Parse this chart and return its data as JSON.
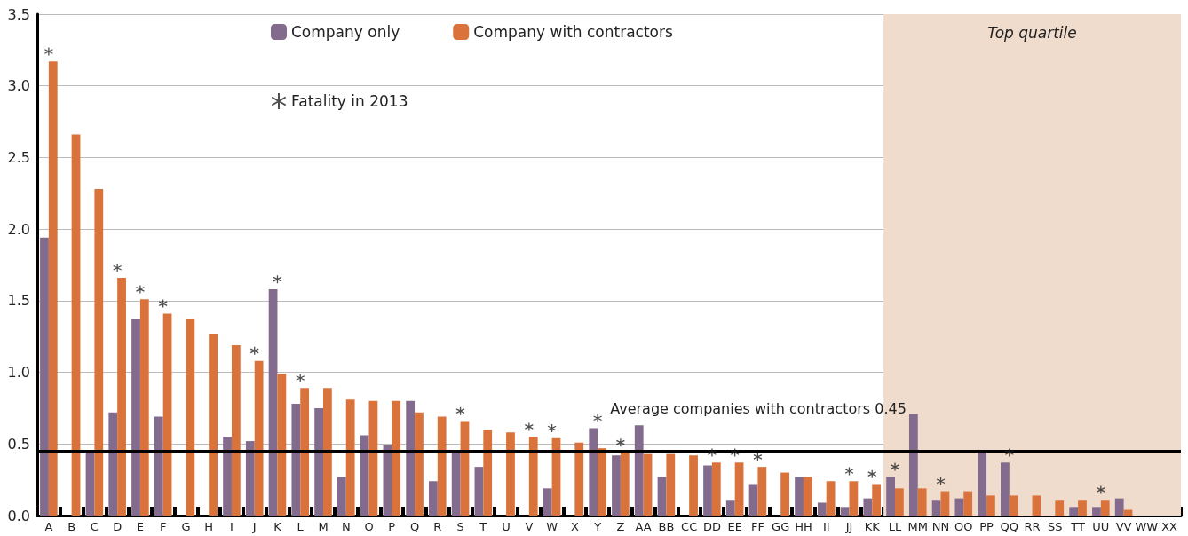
{
  "chart_data": {
    "type": "bar",
    "categories": [
      "A",
      "B",
      "C",
      "D",
      "E",
      "F",
      "G",
      "H",
      "I",
      "J",
      "K",
      "L",
      "M",
      "N",
      "O",
      "P",
      "Q",
      "R",
      "S",
      "T",
      "U",
      "V",
      "W",
      "X",
      "Y",
      "Z",
      "AA",
      "BB",
      "CC",
      "DD",
      "EE",
      "FF",
      "GG",
      "HH",
      "II",
      "JJ",
      "KK",
      "LL",
      "MM",
      "NN",
      "OO",
      "PP",
      "QQ",
      "RR",
      "SS",
      "TT",
      "UU",
      "VV",
      "WW",
      "XX"
    ],
    "series": [
      {
        "name": "Company only",
        "color": "#836b8d",
        "values": [
          1.94,
          0,
          0.45,
          0.72,
          1.37,
          0.69,
          0,
          0,
          0.55,
          0.52,
          1.58,
          0.78,
          0.75,
          0.27,
          0.56,
          0.49,
          0.8,
          0.24,
          0.45,
          0.34,
          0,
          0,
          0.19,
          0,
          0.61,
          0.42,
          0.63,
          0.27,
          0,
          0.35,
          0.11,
          0.22,
          0,
          0.27,
          0.09,
          0.06,
          0.12,
          0.27,
          0.71,
          0.11,
          0.12,
          0.45,
          0.37,
          0,
          0,
          0.06,
          0.06,
          0.12,
          0,
          0
        ]
      },
      {
        "name": "Company with contractors",
        "color": "#d9733b",
        "values": [
          3.17,
          2.66,
          2.28,
          1.66,
          1.51,
          1.41,
          1.37,
          1.27,
          1.19,
          1.08,
          0.99,
          0.89,
          0.89,
          0.81,
          0.8,
          0.8,
          0.72,
          0.69,
          0.66,
          0.6,
          0.58,
          0.55,
          0.54,
          0.51,
          0.47,
          0.44,
          0.43,
          0.43,
          0.42,
          0.37,
          0.37,
          0.34,
          0.3,
          0.27,
          0.24,
          0.24,
          0.22,
          0.19,
          0.19,
          0.17,
          0.17,
          0.14,
          0.14,
          0.14,
          0.11,
          0.11,
          0.11,
          0.04,
          0,
          0
        ]
      },
      {
        "name": "Fatality in 2013",
        "type": "scatter",
        "color": "#222222",
        "values": [
          3.24,
          null,
          null,
          1.73,
          1.58,
          1.48,
          null,
          null,
          null,
          1.15,
          1.65,
          0.96,
          null,
          null,
          null,
          null,
          null,
          null,
          0.73,
          null,
          null,
          0.62,
          0.61,
          null,
          0.68,
          0.51,
          null,
          null,
          null,
          0.44,
          0.44,
          0.41,
          null,
          null,
          null,
          0.31,
          0.29,
          0.34,
          null,
          0.24,
          null,
          null,
          0.44,
          null,
          null,
          null,
          0.18,
          null,
          null,
          null
        ]
      }
    ],
    "ylim": [
      0,
      3.5
    ],
    "yticks": [
      {
        "value": 0,
        "label": "0.0"
      },
      {
        "value": 0.5,
        "label": "0.5"
      },
      {
        "value": 1,
        "label": "1.0"
      },
      {
        "value": 1.5,
        "label": "1.5"
      },
      {
        "value": 2,
        "label": "2.0"
      },
      {
        "value": 2.5,
        "label": "2.5"
      },
      {
        "value": 3,
        "label": "3.0"
      },
      {
        "value": 3.5,
        "label": "3.5"
      }
    ],
    "grid": "y",
    "legend": "top",
    "ref_lines": [
      {
        "axis": "y",
        "value": 0.45,
        "label": "Average companies with contractors 0.45",
        "color": "#000000"
      }
    ],
    "bands": [
      {
        "axis": "x",
        "from": "LL",
        "to": "XX",
        "label": "Top quartile",
        "color": "#f0dccd"
      }
    ]
  }
}
